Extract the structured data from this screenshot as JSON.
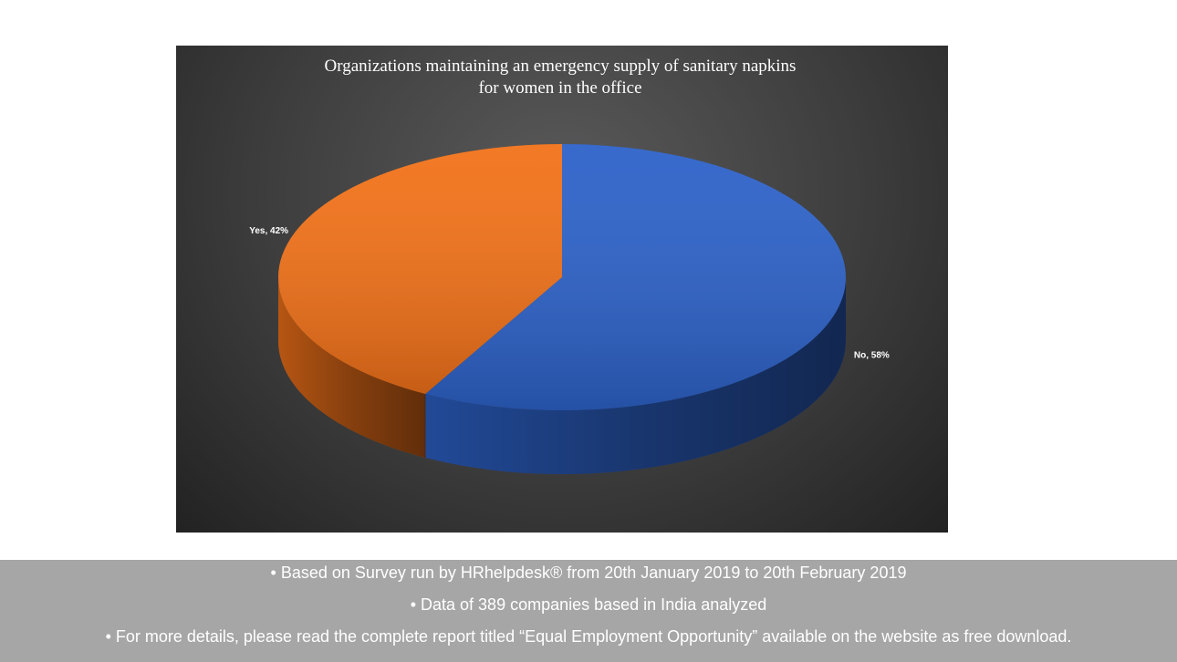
{
  "chart_data": {
    "type": "pie3d",
    "title": "Organizations maintaining an emergency supply of sanitary napkins for women in the office",
    "values": [
      58,
      42
    ],
    "value_labels": [
      "No, 58%",
      "Yes, 42%"
    ],
    "colors": [
      "#2d62c9",
      "#f27219"
    ]
  },
  "notes": [
    "Based on Survey run by HRhelpdesk® from 20th January 2019 to 20th February 2019",
    "Data of 389 companies based in India analyzed",
    "For more details, please read the complete report titled “Equal Employment Opportunity” available on the website as free download."
  ]
}
